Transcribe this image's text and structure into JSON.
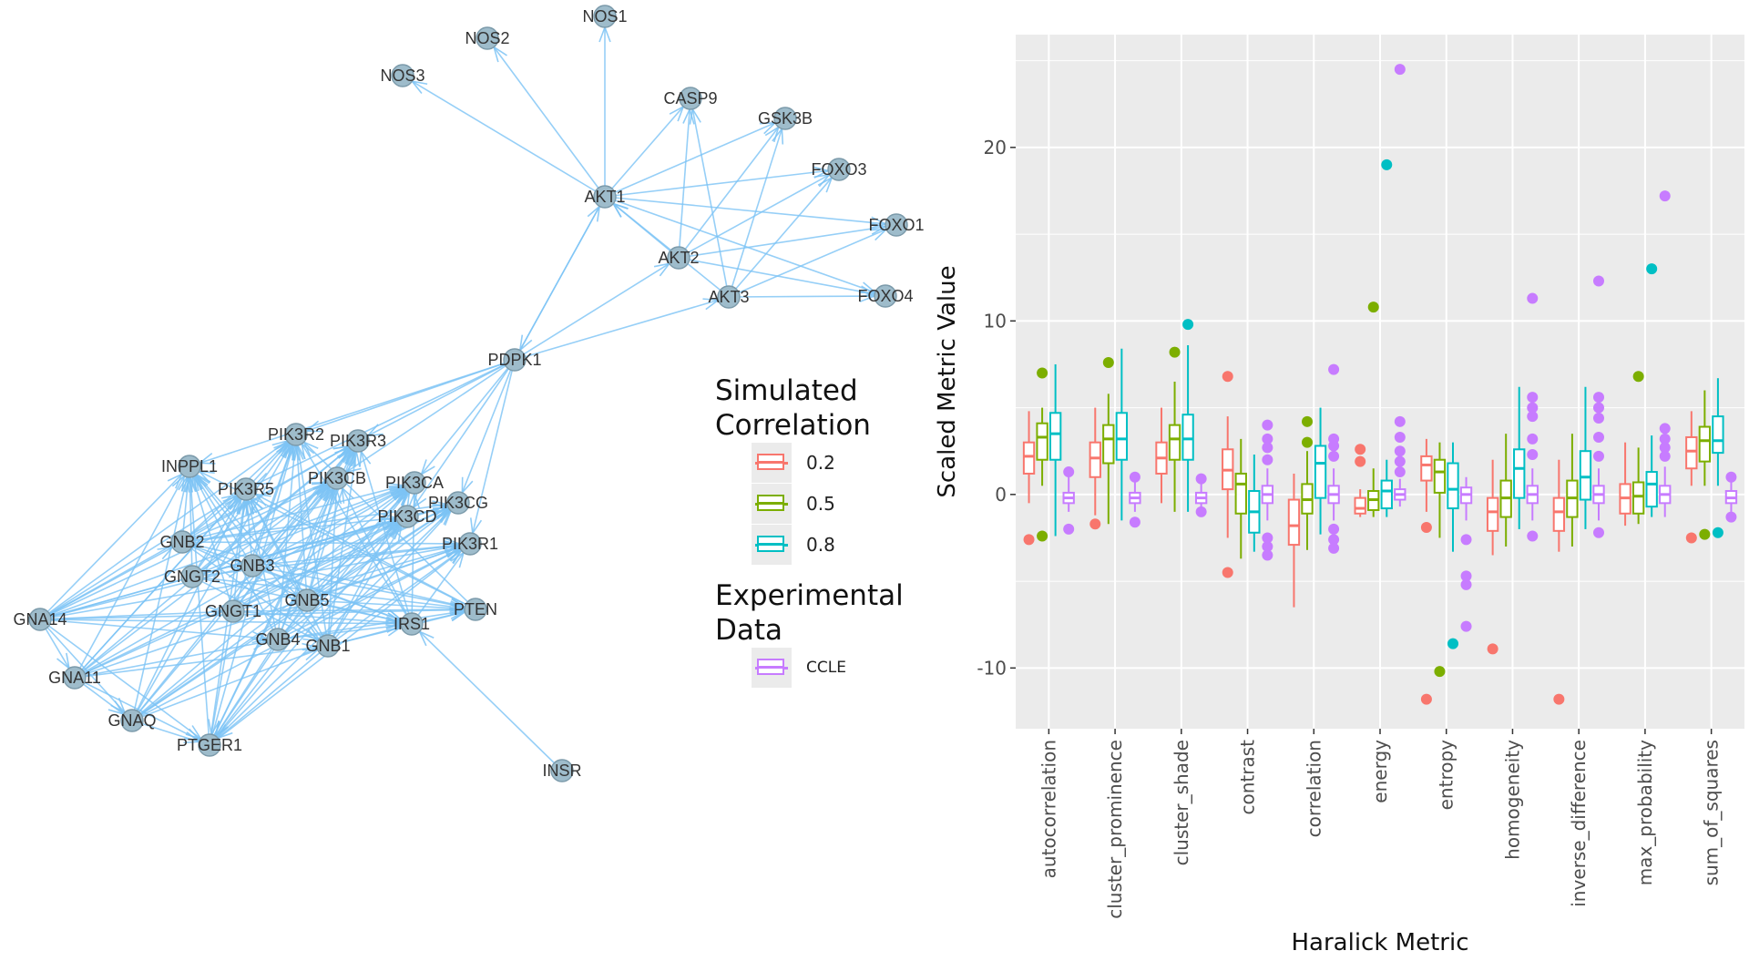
{
  "network": {
    "edge_color": "#7cc3f5",
    "node_fill": "#9ebccb",
    "nodes": [
      {
        "id": "NOS1",
        "label": "NOS1"
      },
      {
        "id": "NOS2",
        "label": "NOS2"
      },
      {
        "id": "NOS3",
        "label": "NOS3"
      },
      {
        "id": "CASP9",
        "label": "CASP9"
      },
      {
        "id": "GSK3B",
        "label": "GSK3B"
      },
      {
        "id": "FOXO3",
        "label": "FOXO3"
      },
      {
        "id": "FOXO1",
        "label": "FOXO1"
      },
      {
        "id": "FOXO4",
        "label": "FOXO4"
      },
      {
        "id": "AKT1",
        "label": "AKT1"
      },
      {
        "id": "AKT2",
        "label": "AKT2"
      },
      {
        "id": "AKT3",
        "label": "AKT3"
      },
      {
        "id": "PDPK1",
        "label": "PDPK1"
      },
      {
        "id": "PIK3R2",
        "label": "PIK3R2"
      },
      {
        "id": "PIK3R3",
        "label": "PIK3R3"
      },
      {
        "id": "INPPL1",
        "label": "INPPL1"
      },
      {
        "id": "PIK3R5",
        "label": "PIK3R5"
      },
      {
        "id": "PIK3CB",
        "label": "PIK3CB"
      },
      {
        "id": "PIK3CA",
        "label": "PIK3CA"
      },
      {
        "id": "PIK3CG",
        "label": "PIK3CG"
      },
      {
        "id": "PIK3CD",
        "label": "PIK3CD"
      },
      {
        "id": "PIK3R1",
        "label": "PIK3R1"
      },
      {
        "id": "GNB2",
        "label": "GNB2"
      },
      {
        "id": "GNGT2",
        "label": "GNGT2"
      },
      {
        "id": "GNB3",
        "label": "GNB3"
      },
      {
        "id": "GNB5",
        "label": "GNB5"
      },
      {
        "id": "GNGT1",
        "label": "GNGT1"
      },
      {
        "id": "PTEN",
        "label": "PTEN"
      },
      {
        "id": "IRS1",
        "label": "IRS1"
      },
      {
        "id": "GNB4",
        "label": "GNB4"
      },
      {
        "id": "GNB1",
        "label": "GNB1"
      },
      {
        "id": "GNA14",
        "label": "GNA14"
      },
      {
        "id": "GNA11",
        "label": "GNA11"
      },
      {
        "id": "GNAQ",
        "label": "GNAQ"
      },
      {
        "id": "PTGER1",
        "label": "PTGER1"
      },
      {
        "id": "INSR",
        "label": "INSR"
      }
    ]
  },
  "legend": {
    "simulated_title": [
      "Simulated",
      "Correlation"
    ],
    "simulated_items": [
      {
        "label": "0.2",
        "color": "#f8766d"
      },
      {
        "label": "0.5",
        "color": "#7cae00"
      },
      {
        "label": "0.8",
        "color": "#00bfc4"
      }
    ],
    "experimental_title": [
      "Experimental",
      "Data"
    ],
    "experimental_items": [
      {
        "label": "CCLE",
        "color": "#c77cff"
      }
    ]
  },
  "chart_data": {
    "type": "box",
    "xlabel": "Haralick Metric",
    "ylabel": "Scaled Metric Value",
    "ylim": [
      -13.5,
      26.5
    ],
    "yticks": [
      -10,
      0,
      10,
      20
    ],
    "panel_background": "#ebebeb",
    "grid": true,
    "categories": [
      "autocorrelation",
      "cluster_prominence",
      "cluster_shade",
      "contrast",
      "correlation",
      "energy",
      "entropy",
      "homogeneity",
      "inverse_difference",
      "max_probability",
      "sum_of_squares"
    ],
    "series": [
      {
        "name": "0.2",
        "color": "#f8766d",
        "boxes": [
          {
            "q1": 1.2,
            "median": 2.2,
            "q3": 3.0,
            "lo": -0.5,
            "hi": 4.8,
            "outliers": [
              -2.6
            ]
          },
          {
            "q1": 1.0,
            "median": 2.1,
            "q3": 3.0,
            "lo": -1.2,
            "hi": 5.0,
            "outliers": [
              -1.7
            ]
          },
          {
            "q1": 1.2,
            "median": 2.1,
            "q3": 3.0,
            "lo": -0.5,
            "hi": 5.0,
            "outliers": []
          },
          {
            "q1": 0.3,
            "median": 1.4,
            "q3": 2.6,
            "lo": -2.5,
            "hi": 4.5,
            "outliers": [
              6.8,
              -4.5
            ]
          },
          {
            "q1": -2.9,
            "median": -1.8,
            "q3": -0.3,
            "lo": -6.5,
            "hi": 1.2,
            "outliers": []
          },
          {
            "q1": -1.1,
            "median": -0.8,
            "q3": -0.2,
            "lo": -1.3,
            "hi": 0.3,
            "outliers": [
              2.6,
              1.9
            ]
          },
          {
            "q1": 0.8,
            "median": 1.7,
            "q3": 2.2,
            "lo": -1.0,
            "hi": 3.2,
            "outliers": [
              -1.9,
              -11.8
            ]
          },
          {
            "q1": -2.1,
            "median": -1.0,
            "q3": -0.2,
            "lo": -3.5,
            "hi": 2.0,
            "outliers": [
              -8.9
            ]
          },
          {
            "q1": -2.1,
            "median": -1.0,
            "q3": -0.2,
            "lo": -3.3,
            "hi": 2.0,
            "outliers": [
              -11.8
            ]
          },
          {
            "q1": -1.1,
            "median": -0.2,
            "q3": 0.6,
            "lo": -1.8,
            "hi": 3.0,
            "outliers": []
          },
          {
            "q1": 1.5,
            "median": 2.5,
            "q3": 3.3,
            "lo": 0.5,
            "hi": 4.8,
            "outliers": [
              -2.5
            ]
          }
        ]
      },
      {
        "name": "0.5",
        "color": "#7cae00",
        "boxes": [
          {
            "q1": 2.0,
            "median": 3.3,
            "q3": 4.1,
            "lo": 0.5,
            "hi": 5.0,
            "outliers": [
              7.0,
              -2.4
            ]
          },
          {
            "q1": 1.8,
            "median": 3.2,
            "q3": 4.0,
            "lo": -1.7,
            "hi": 5.8,
            "outliers": [
              7.6
            ]
          },
          {
            "q1": 2.0,
            "median": 3.2,
            "q3": 4.0,
            "lo": -1.0,
            "hi": 6.5,
            "outliers": [
              8.2
            ]
          },
          {
            "q1": -1.1,
            "median": 0.6,
            "q3": 1.2,
            "lo": -3.7,
            "hi": 3.2,
            "outliers": []
          },
          {
            "q1": -1.1,
            "median": -0.3,
            "q3": 0.6,
            "lo": -3.2,
            "hi": 2.5,
            "outliers": [
              4.2,
              3.0
            ]
          },
          {
            "q1": -0.9,
            "median": -0.3,
            "q3": 0.2,
            "lo": -1.3,
            "hi": 1.5,
            "outliers": [
              10.8
            ]
          },
          {
            "q1": 0.1,
            "median": 1.3,
            "q3": 2.0,
            "lo": -2.5,
            "hi": 3.0,
            "outliers": [
              -10.2
            ]
          },
          {
            "q1": -1.3,
            "median": -0.2,
            "q3": 0.8,
            "lo": -3.0,
            "hi": 3.5,
            "outliers": []
          },
          {
            "q1": -1.3,
            "median": -0.2,
            "q3": 0.8,
            "lo": -3.0,
            "hi": 3.5,
            "outliers": []
          },
          {
            "q1": -1.1,
            "median": -0.1,
            "q3": 0.7,
            "lo": -1.7,
            "hi": 2.7,
            "outliers": [
              6.8
            ]
          },
          {
            "q1": 1.9,
            "median": 3.1,
            "q3": 3.9,
            "lo": 0.5,
            "hi": 6.0,
            "outliers": [
              -2.3
            ]
          }
        ]
      },
      {
        "name": "0.8",
        "color": "#00bfc4",
        "boxes": [
          {
            "q1": 2.0,
            "median": 3.5,
            "q3": 4.7,
            "lo": -2.4,
            "hi": 7.5,
            "outliers": []
          },
          {
            "q1": 2.0,
            "median": 3.2,
            "q3": 4.7,
            "lo": -1.5,
            "hi": 8.4,
            "outliers": []
          },
          {
            "q1": 2.0,
            "median": 3.2,
            "q3": 4.6,
            "lo": -1.0,
            "hi": 8.6,
            "outliers": [
              9.8
            ]
          },
          {
            "q1": -2.2,
            "median": -1.0,
            "q3": 0.2,
            "lo": -3.3,
            "hi": 2.3,
            "outliers": []
          },
          {
            "q1": -0.2,
            "median": 1.8,
            "q3": 2.8,
            "lo": -2.3,
            "hi": 5.0,
            "outliers": []
          },
          {
            "q1": -0.8,
            "median": 0.2,
            "q3": 0.8,
            "lo": -1.3,
            "hi": 2.0,
            "outliers": [
              19.0
            ]
          },
          {
            "q1": -0.8,
            "median": 0.3,
            "q3": 1.8,
            "lo": -3.3,
            "hi": 3.0,
            "outliers": [
              -8.6
            ]
          },
          {
            "q1": -0.2,
            "median": 1.5,
            "q3": 2.6,
            "lo": -2.0,
            "hi": 6.2,
            "outliers": []
          },
          {
            "q1": -0.3,
            "median": 1.0,
            "q3": 2.5,
            "lo": -2.0,
            "hi": 6.2,
            "outliers": []
          },
          {
            "q1": -0.7,
            "median": 0.6,
            "q3": 1.3,
            "lo": -1.3,
            "hi": 3.4,
            "outliers": [
              13.0
            ]
          },
          {
            "q1": 2.4,
            "median": 3.1,
            "q3": 4.5,
            "lo": 0.5,
            "hi": 6.7,
            "outliers": [
              -2.2
            ]
          }
        ]
      },
      {
        "name": "CCLE",
        "color": "#c77cff",
        "boxes": [
          {
            "q1": -0.5,
            "median": -0.2,
            "q3": 0.1,
            "lo": -1.0,
            "hi": 1.1,
            "outliers": [
              1.3,
              -2.0
            ]
          },
          {
            "q1": -0.5,
            "median": -0.2,
            "q3": 0.1,
            "lo": -1.0,
            "hi": 0.8,
            "outliers": [
              1.0,
              -1.6
            ]
          },
          {
            "q1": -0.5,
            "median": -0.2,
            "q3": 0.1,
            "lo": -1.0,
            "hi": 0.6,
            "outliers": [
              0.9,
              -1.0
            ]
          },
          {
            "q1": -0.5,
            "median": 0.0,
            "q3": 0.5,
            "lo": -1.5,
            "hi": 1.5,
            "outliers": [
              2.0,
              2.7,
              3.2,
              4.0,
              -2.5,
              -3.0,
              -3.5
            ]
          },
          {
            "q1": -0.5,
            "median": 0.0,
            "q3": 0.5,
            "lo": -1.5,
            "hi": 1.5,
            "outliers": [
              2.2,
              2.8,
              3.2,
              7.2,
              -2.0,
              -2.6,
              -3.1
            ]
          },
          {
            "q1": -0.3,
            "median": 0.0,
            "q3": 0.3,
            "lo": -0.7,
            "hi": 0.9,
            "outliers": [
              1.3,
              1.9,
              2.5,
              3.3,
              4.2,
              24.5
            ]
          },
          {
            "q1": -0.5,
            "median": 0.0,
            "q3": 0.4,
            "lo": -1.5,
            "hi": 1.0,
            "outliers": [
              -2.6,
              -4.7,
              -5.2,
              -7.6
            ]
          },
          {
            "q1": -0.5,
            "median": 0.0,
            "q3": 0.5,
            "lo": -1.5,
            "hi": 1.5,
            "outliers": [
              2.3,
              3.2,
              4.5,
              5.0,
              5.6,
              11.3,
              -2.4
            ]
          },
          {
            "q1": -0.5,
            "median": 0.0,
            "q3": 0.5,
            "lo": -1.5,
            "hi": 1.5,
            "outliers": [
              2.2,
              3.3,
              4.4,
              5.0,
              5.6,
              12.3,
              -2.2
            ]
          },
          {
            "q1": -0.5,
            "median": 0.0,
            "q3": 0.5,
            "lo": -1.3,
            "hi": 1.6,
            "outliers": [
              2.2,
              2.7,
              3.2,
              3.8,
              17.2
            ]
          },
          {
            "q1": -0.5,
            "median": -0.2,
            "q3": 0.2,
            "lo": -1.0,
            "hi": 0.7,
            "outliers": [
              1.0,
              -1.3
            ]
          }
        ]
      }
    ]
  }
}
